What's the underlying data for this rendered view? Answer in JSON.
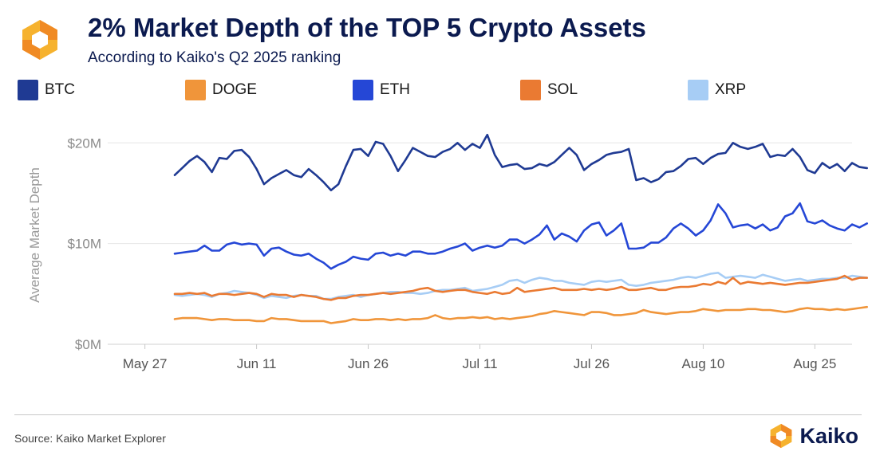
{
  "header": {
    "title": "2% Market Depth of the TOP 5 Crypto Assets",
    "subtitle": "According to Kaiko's Q2 2025 ranking",
    "logo_icon": "kaiko-hexagon-logo-icon"
  },
  "footer": {
    "source": "Source: Kaiko Market Explorer",
    "brand": "Kaiko"
  },
  "colors": {
    "title": "#0b1a4f",
    "grid": "#e6e6e6",
    "axis_text": "#8a8a8a",
    "logo_orange": "#f08a24",
    "logo_yellow": "#f6b22e"
  },
  "chart_data": {
    "type": "line",
    "ylabel": "Average Market Depth",
    "xlabel": "",
    "ylim": [
      0,
      22
    ],
    "y_ticks": [
      0,
      10,
      20
    ],
    "y_tick_labels": [
      "$0M",
      "$10M",
      "$20M"
    ],
    "x_ticks": [
      0,
      15,
      30,
      45,
      60,
      75,
      90
    ],
    "x_tick_labels": [
      "May 27",
      "Jun 11",
      "Jun 26",
      "Jul 11",
      "Jul 26",
      "Aug 10",
      "Aug 25"
    ],
    "x_range": [
      -5,
      95
    ],
    "start_day_offset": 4,
    "unit": "$M",
    "legend_position": "top",
    "series": [
      {
        "name": "BTC",
        "color": "#1f3a93",
        "values": [
          16.8,
          17.5,
          18.2,
          18.7,
          18.1,
          17.1,
          18.5,
          18.4,
          19.2,
          19.3,
          18.6,
          17.4,
          15.9,
          16.5,
          16.9,
          17.3,
          16.8,
          16.6,
          17.4,
          16.8,
          16.1,
          15.3,
          15.9,
          17.7,
          19.3,
          19.4,
          18.7,
          20.1,
          19.9,
          18.7,
          17.2,
          18.3,
          19.5,
          19.1,
          18.7,
          18.6,
          19.1,
          19.4,
          20.0,
          19.3,
          19.9,
          19.5,
          20.8,
          18.8,
          17.6,
          17.8,
          17.9,
          17.4,
          17.5,
          17.9,
          17.7,
          18.1,
          18.8,
          19.5,
          18.8,
          17.3,
          17.9,
          18.3,
          18.8,
          19.0,
          19.1,
          19.4,
          16.3,
          16.5,
          16.1,
          16.4,
          17.1,
          17.2,
          17.7,
          18.4,
          18.5,
          17.9,
          18.5,
          18.9,
          19.0,
          20.0,
          19.6,
          19.4,
          19.6,
          19.9,
          18.6,
          18.8,
          18.7,
          19.4,
          18.6,
          17.3,
          17.0,
          18.0,
          17.5,
          17.9,
          17.2,
          18.0,
          17.6,
          17.5
        ]
      },
      {
        "name": "DOGE",
        "color": "#f0953a",
        "values": [
          2.5,
          2.6,
          2.6,
          2.6,
          2.5,
          2.4,
          2.5,
          2.5,
          2.4,
          2.4,
          2.4,
          2.3,
          2.3,
          2.6,
          2.5,
          2.5,
          2.4,
          2.3,
          2.3,
          2.3,
          2.3,
          2.1,
          2.2,
          2.3,
          2.5,
          2.4,
          2.4,
          2.5,
          2.5,
          2.4,
          2.5,
          2.4,
          2.5,
          2.5,
          2.6,
          2.9,
          2.6,
          2.5,
          2.6,
          2.6,
          2.7,
          2.6,
          2.7,
          2.5,
          2.6,
          2.5,
          2.6,
          2.7,
          2.8,
          3.0,
          3.1,
          3.3,
          3.2,
          3.1,
          3.0,
          2.9,
          3.2,
          3.2,
          3.1,
          2.9,
          2.9,
          3.0,
          3.1,
          3.4,
          3.2,
          3.1,
          3.0,
          3.1,
          3.2,
          3.2,
          3.3,
          3.5,
          3.4,
          3.3,
          3.4,
          3.4,
          3.4,
          3.5,
          3.5,
          3.4,
          3.4,
          3.3,
          3.2,
          3.3,
          3.5,
          3.6,
          3.5,
          3.5,
          3.4,
          3.5,
          3.4,
          3.5,
          3.6,
          3.7
        ]
      },
      {
        "name": "ETH",
        "color": "#2547d6",
        "values": [
          9.0,
          9.1,
          9.2,
          9.3,
          9.8,
          9.3,
          9.3,
          9.9,
          10.1,
          9.9,
          10.0,
          9.9,
          8.8,
          9.5,
          9.6,
          9.2,
          8.9,
          8.8,
          9.0,
          8.5,
          8.1,
          7.5,
          7.9,
          8.2,
          8.7,
          8.5,
          8.4,
          9.0,
          9.1,
          8.8,
          9.0,
          8.8,
          9.2,
          9.2,
          9.0,
          9.0,
          9.2,
          9.5,
          9.7,
          10.0,
          9.3,
          9.6,
          9.8,
          9.6,
          9.8,
          10.4,
          10.4,
          10.0,
          10.4,
          10.9,
          11.8,
          10.4,
          11.0,
          10.7,
          10.2,
          11.3,
          11.9,
          12.1,
          10.8,
          11.3,
          12.0,
          9.5,
          9.5,
          9.6,
          10.1,
          10.1,
          10.6,
          11.5,
          12.0,
          11.5,
          10.8,
          11.3,
          12.3,
          13.9,
          13.0,
          11.6,
          11.8,
          11.9,
          11.5,
          11.9,
          11.3,
          11.6,
          12.7,
          13.0,
          14.0,
          12.2,
          12.0,
          12.3,
          11.8,
          11.5,
          11.3,
          11.9,
          11.6,
          12.0
        ]
      },
      {
        "name": "SOL",
        "color": "#ea7a32",
        "values": [
          5.0,
          5.0,
          5.1,
          5.0,
          5.1,
          4.8,
          5.0,
          5.0,
          4.9,
          5.0,
          5.1,
          5.0,
          4.7,
          5.0,
          4.9,
          4.9,
          4.7,
          4.9,
          4.8,
          4.7,
          4.5,
          4.4,
          4.6,
          4.6,
          4.8,
          4.9,
          4.9,
          5.0,
          5.1,
          5.0,
          5.1,
          5.2,
          5.3,
          5.5,
          5.6,
          5.3,
          5.2,
          5.3,
          5.4,
          5.4,
          5.2,
          5.1,
          5.0,
          5.2,
          5.0,
          5.1,
          5.6,
          5.2,
          5.3,
          5.4,
          5.5,
          5.6,
          5.4,
          5.4,
          5.4,
          5.5,
          5.4,
          5.5,
          5.4,
          5.5,
          5.7,
          5.4,
          5.4,
          5.5,
          5.6,
          5.4,
          5.4,
          5.6,
          5.7,
          5.7,
          5.8,
          6.0,
          5.9,
          6.2,
          6.0,
          6.6,
          6.0,
          6.2,
          6.1,
          6.0,
          6.1,
          6.0,
          5.9,
          6.0,
          6.1,
          6.1,
          6.2,
          6.3,
          6.4,
          6.5,
          6.8,
          6.4,
          6.6,
          6.6
        ]
      },
      {
        "name": "XRP",
        "color": "#a7cdf5",
        "values": [
          4.9,
          4.8,
          4.9,
          5.0,
          4.9,
          4.7,
          5.0,
          5.1,
          5.3,
          5.2,
          5.1,
          4.9,
          4.6,
          4.8,
          4.7,
          4.6,
          4.8,
          4.9,
          4.8,
          4.8,
          4.5,
          4.5,
          4.7,
          4.8,
          4.9,
          4.7,
          4.9,
          5.0,
          5.1,
          5.2,
          5.2,
          5.1,
          5.1,
          5.0,
          5.1,
          5.3,
          5.4,
          5.4,
          5.5,
          5.6,
          5.3,
          5.4,
          5.5,
          5.7,
          5.9,
          6.3,
          6.4,
          6.1,
          6.4,
          6.6,
          6.5,
          6.3,
          6.3,
          6.1,
          6.0,
          5.9,
          6.2,
          6.3,
          6.2,
          6.3,
          6.4,
          5.9,
          5.8,
          5.9,
          6.1,
          6.2,
          6.3,
          6.4,
          6.6,
          6.7,
          6.6,
          6.8,
          7.0,
          7.1,
          6.6,
          6.7,
          6.8,
          6.7,
          6.6,
          6.9,
          6.7,
          6.5,
          6.3,
          6.4,
          6.5,
          6.3,
          6.4,
          6.5,
          6.5,
          6.6,
          6.6,
          6.8,
          6.7,
          6.6
        ]
      }
    ]
  }
}
